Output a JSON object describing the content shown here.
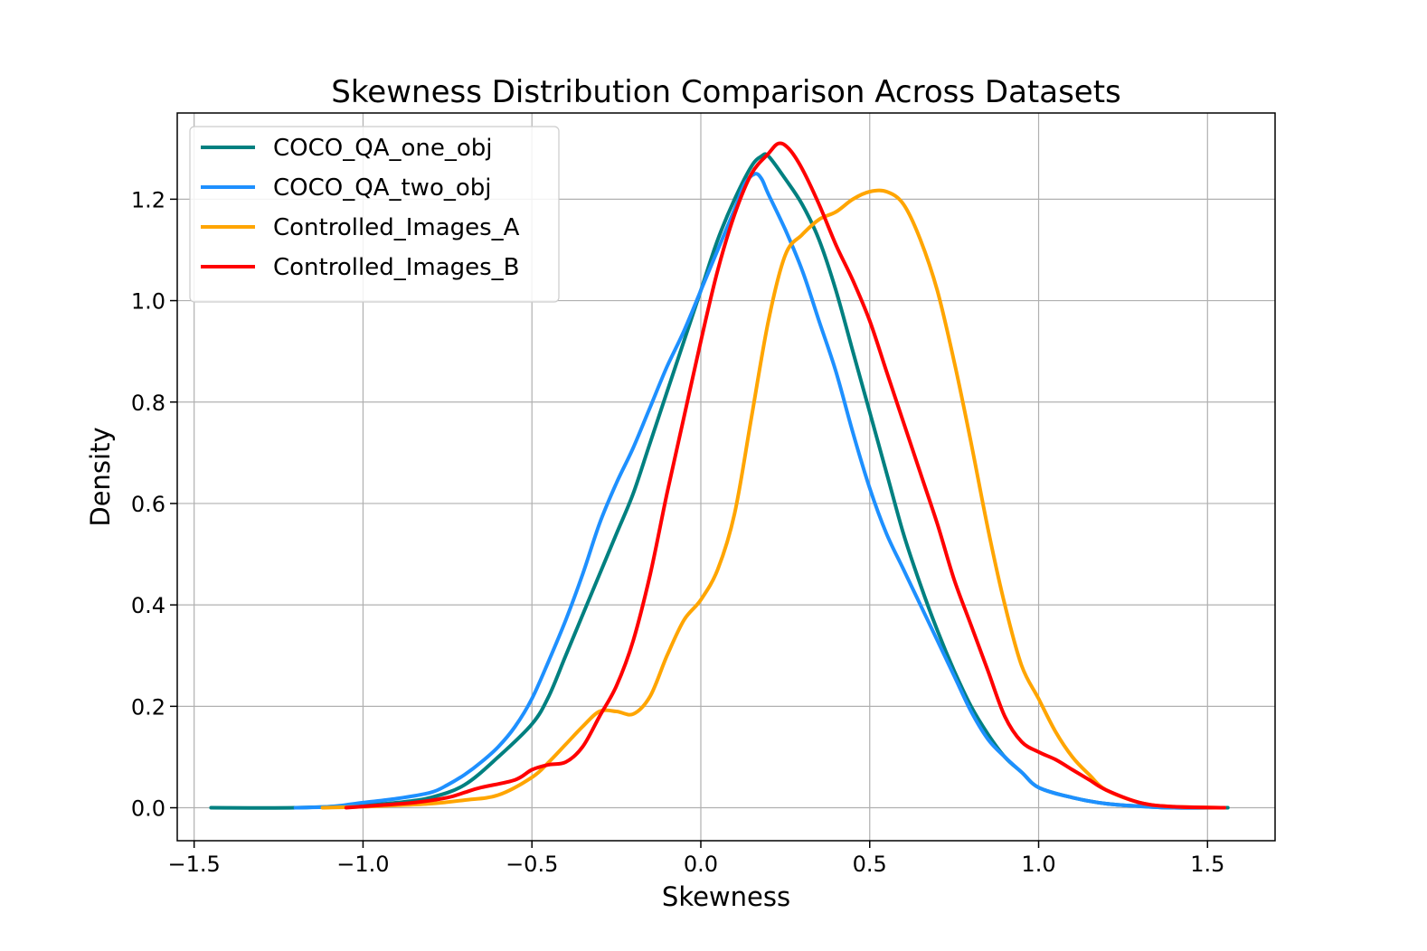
{
  "chart_data": {
    "type": "line",
    "title": "Skewness Distribution Comparison Across Datasets",
    "xlabel": "Skewness",
    "ylabel": "Density",
    "xlim": [
      -1.55,
      1.7
    ],
    "ylim": [
      -0.065,
      1.37
    ],
    "xticks": [
      -1.5,
      -1.0,
      -0.5,
      0.0,
      0.5,
      1.0,
      1.5
    ],
    "xtick_labels": [
      "−1.5",
      "−1.0",
      "−0.5",
      "0.0",
      "0.5",
      "1.0",
      "1.5"
    ],
    "yticks": [
      0.0,
      0.2,
      0.4,
      0.6,
      0.8,
      1.0,
      1.2
    ],
    "ytick_labels": [
      "0.0",
      "0.2",
      "0.4",
      "0.6",
      "0.8",
      "1.0",
      "1.2"
    ],
    "grid": true,
    "legend_position": "upper-left",
    "series": [
      {
        "name": "COCO_QA_one_obj",
        "color": "#008080",
        "points": [
          [
            -1.45,
            0.0
          ],
          [
            -1.2,
            0.0
          ],
          [
            -1.0,
            0.005
          ],
          [
            -0.9,
            0.01
          ],
          [
            -0.8,
            0.02
          ],
          [
            -0.7,
            0.045
          ],
          [
            -0.6,
            0.1
          ],
          [
            -0.5,
            0.165
          ],
          [
            -0.45,
            0.22
          ],
          [
            -0.4,
            0.3
          ],
          [
            -0.35,
            0.38
          ],
          [
            -0.3,
            0.46
          ],
          [
            -0.25,
            0.54
          ],
          [
            -0.2,
            0.62
          ],
          [
            -0.15,
            0.72
          ],
          [
            -0.1,
            0.82
          ],
          [
            -0.05,
            0.92
          ],
          [
            0.0,
            1.02
          ],
          [
            0.05,
            1.12
          ],
          [
            0.1,
            1.2
          ],
          [
            0.15,
            1.265
          ],
          [
            0.18,
            1.285
          ],
          [
            0.2,
            1.285
          ],
          [
            0.25,
            1.24
          ],
          [
            0.3,
            1.19
          ],
          [
            0.35,
            1.12
          ],
          [
            0.4,
            1.02
          ],
          [
            0.45,
            0.9
          ],
          [
            0.5,
            0.78
          ],
          [
            0.55,
            0.66
          ],
          [
            0.6,
            0.54
          ],
          [
            0.65,
            0.44
          ],
          [
            0.7,
            0.35
          ],
          [
            0.75,
            0.27
          ],
          [
            0.8,
            0.2
          ],
          [
            0.85,
            0.145
          ],
          [
            0.9,
            0.1
          ],
          [
            0.95,
            0.07
          ],
          [
            1.0,
            0.04
          ],
          [
            1.1,
            0.02
          ],
          [
            1.2,
            0.008
          ],
          [
            1.3,
            0.003
          ],
          [
            1.4,
            0.0
          ],
          [
            1.56,
            0.0
          ]
        ]
      },
      {
        "name": "COCO_QA_two_obj",
        "color": "#1e90ff",
        "points": [
          [
            -1.2,
            0.0
          ],
          [
            -1.1,
            0.002
          ],
          [
            -1.0,
            0.01
          ],
          [
            -0.9,
            0.018
          ],
          [
            -0.8,
            0.03
          ],
          [
            -0.75,
            0.045
          ],
          [
            -0.7,
            0.065
          ],
          [
            -0.65,
            0.09
          ],
          [
            -0.6,
            0.12
          ],
          [
            -0.55,
            0.16
          ],
          [
            -0.5,
            0.215
          ],
          [
            -0.45,
            0.29
          ],
          [
            -0.4,
            0.37
          ],
          [
            -0.35,
            0.46
          ],
          [
            -0.3,
            0.56
          ],
          [
            -0.25,
            0.64
          ],
          [
            -0.2,
            0.71
          ],
          [
            -0.15,
            0.79
          ],
          [
            -0.1,
            0.87
          ],
          [
            -0.05,
            0.94
          ],
          [
            0.0,
            1.02
          ],
          [
            0.05,
            1.1
          ],
          [
            0.1,
            1.18
          ],
          [
            0.13,
            1.23
          ],
          [
            0.16,
            1.25
          ],
          [
            0.18,
            1.24
          ],
          [
            0.2,
            1.21
          ],
          [
            0.25,
            1.14
          ],
          [
            0.3,
            1.06
          ],
          [
            0.35,
            0.96
          ],
          [
            0.4,
            0.86
          ],
          [
            0.45,
            0.74
          ],
          [
            0.5,
            0.63
          ],
          [
            0.55,
            0.54
          ],
          [
            0.6,
            0.47
          ],
          [
            0.65,
            0.4
          ],
          [
            0.7,
            0.33
          ],
          [
            0.75,
            0.26
          ],
          [
            0.8,
            0.19
          ],
          [
            0.85,
            0.135
          ],
          [
            0.9,
            0.1
          ],
          [
            0.95,
            0.07
          ],
          [
            1.0,
            0.04
          ],
          [
            1.1,
            0.02
          ],
          [
            1.2,
            0.008
          ],
          [
            1.3,
            0.003
          ],
          [
            1.4,
            0.0
          ],
          [
            1.55,
            0.0
          ]
        ]
      },
      {
        "name": "Controlled_Images_A",
        "color": "#ffa500",
        "points": [
          [
            -1.12,
            0.0
          ],
          [
            -1.0,
            0.002
          ],
          [
            -0.9,
            0.005
          ],
          [
            -0.8,
            0.008
          ],
          [
            -0.7,
            0.015
          ],
          [
            -0.6,
            0.025
          ],
          [
            -0.5,
            0.06
          ],
          [
            -0.45,
            0.09
          ],
          [
            -0.4,
            0.125
          ],
          [
            -0.35,
            0.16
          ],
          [
            -0.3,
            0.19
          ],
          [
            -0.25,
            0.19
          ],
          [
            -0.2,
            0.185
          ],
          [
            -0.15,
            0.22
          ],
          [
            -0.1,
            0.3
          ],
          [
            -0.05,
            0.37
          ],
          [
            0.0,
            0.41
          ],
          [
            0.05,
            0.47
          ],
          [
            0.1,
            0.58
          ],
          [
            0.15,
            0.77
          ],
          [
            0.2,
            0.96
          ],
          [
            0.25,
            1.09
          ],
          [
            0.3,
            1.13
          ],
          [
            0.35,
            1.16
          ],
          [
            0.4,
            1.175
          ],
          [
            0.45,
            1.2
          ],
          [
            0.5,
            1.215
          ],
          [
            0.55,
            1.215
          ],
          [
            0.6,
            1.19
          ],
          [
            0.65,
            1.12
          ],
          [
            0.7,
            1.02
          ],
          [
            0.75,
            0.88
          ],
          [
            0.8,
            0.72
          ],
          [
            0.85,
            0.55
          ],
          [
            0.9,
            0.4
          ],
          [
            0.95,
            0.28
          ],
          [
            1.0,
            0.215
          ],
          [
            1.05,
            0.15
          ],
          [
            1.1,
            0.1
          ],
          [
            1.15,
            0.065
          ],
          [
            1.2,
            0.035
          ],
          [
            1.3,
            0.01
          ],
          [
            1.4,
            0.002
          ],
          [
            1.55,
            0.0
          ]
        ]
      },
      {
        "name": "Controlled_Images_B",
        "color": "#ff0000",
        "points": [
          [
            -1.05,
            0.0
          ],
          [
            -0.95,
            0.005
          ],
          [
            -0.85,
            0.01
          ],
          [
            -0.75,
            0.02
          ],
          [
            -0.7,
            0.03
          ],
          [
            -0.65,
            0.04
          ],
          [
            -0.55,
            0.055
          ],
          [
            -0.5,
            0.075
          ],
          [
            -0.45,
            0.085
          ],
          [
            -0.4,
            0.09
          ],
          [
            -0.35,
            0.12
          ],
          [
            -0.3,
            0.18
          ],
          [
            -0.25,
            0.24
          ],
          [
            -0.2,
            0.33
          ],
          [
            -0.15,
            0.46
          ],
          [
            -0.1,
            0.62
          ],
          [
            -0.05,
            0.77
          ],
          [
            0.0,
            0.92
          ],
          [
            0.05,
            1.06
          ],
          [
            0.1,
            1.17
          ],
          [
            0.15,
            1.25
          ],
          [
            0.2,
            1.29
          ],
          [
            0.23,
            1.31
          ],
          [
            0.26,
            1.3
          ],
          [
            0.3,
            1.26
          ],
          [
            0.35,
            1.19
          ],
          [
            0.4,
            1.11
          ],
          [
            0.45,
            1.04
          ],
          [
            0.5,
            0.96
          ],
          [
            0.55,
            0.86
          ],
          [
            0.6,
            0.76
          ],
          [
            0.65,
            0.66
          ],
          [
            0.7,
            0.56
          ],
          [
            0.75,
            0.45
          ],
          [
            0.8,
            0.36
          ],
          [
            0.85,
            0.27
          ],
          [
            0.9,
            0.18
          ],
          [
            0.95,
            0.13
          ],
          [
            1.0,
            0.11
          ],
          [
            1.05,
            0.095
          ],
          [
            1.1,
            0.075
          ],
          [
            1.15,
            0.055
          ],
          [
            1.2,
            0.035
          ],
          [
            1.3,
            0.01
          ],
          [
            1.4,
            0.002
          ],
          [
            1.55,
            0.0
          ]
        ]
      }
    ]
  }
}
